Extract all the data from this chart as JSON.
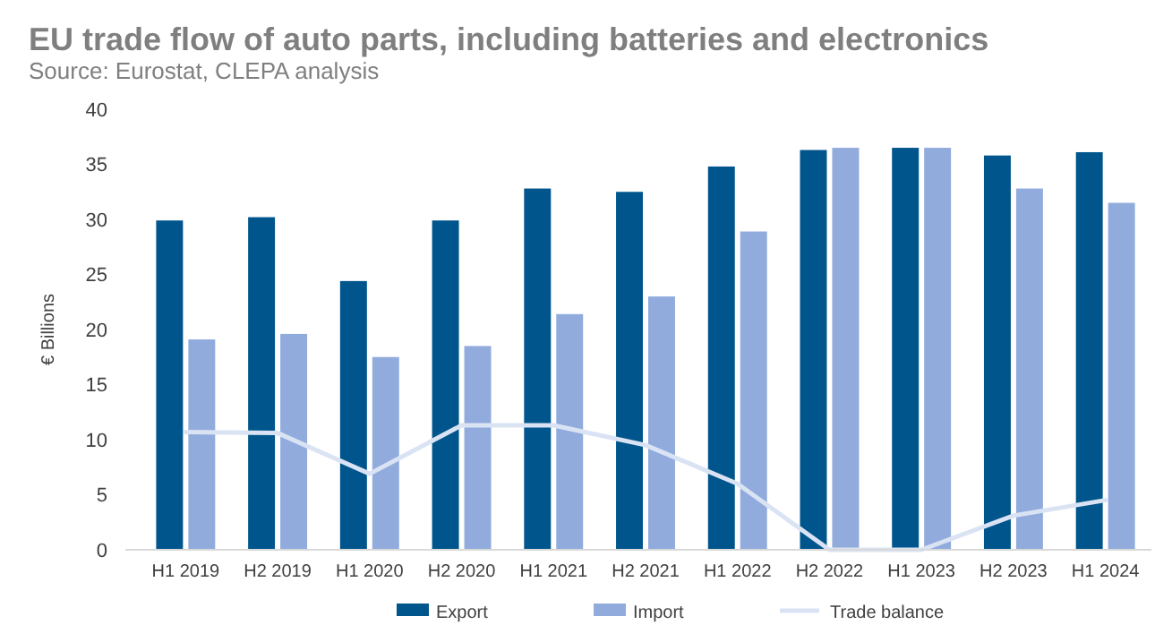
{
  "chart_data": {
    "type": "bar",
    "title": "EU trade flow of auto parts, including batteries and electronics",
    "subtitle": "Source: Eurostat, CLEPA analysis",
    "ylabel": "€ Billions",
    "categories": [
      "H1 2019",
      "H2 2019",
      "H1 2020",
      "H2 2020",
      "H1 2021",
      "H2 2021",
      "H1 2022",
      "H2 2022",
      "H1 2023",
      "H2 2023",
      "H1 2024"
    ],
    "series": [
      {
        "name": "Export",
        "color": "#00558c",
        "values": [
          29.9,
          30.2,
          24.4,
          29.9,
          32.8,
          32.5,
          34.8,
          36.3,
          36.5,
          35.8,
          36.1
        ]
      },
      {
        "name": "Import",
        "color": "#91abdd",
        "values": [
          19.1,
          19.6,
          17.5,
          18.5,
          21.4,
          23.0,
          28.9,
          36.5,
          36.5,
          32.8,
          31.5
        ]
      },
      {
        "name": "Trade balance",
        "type": "line",
        "color": "#dae3f3",
        "values": [
          10.7,
          10.6,
          6.9,
          11.3,
          11.3,
          9.5,
          6.0,
          0,
          0,
          3.1,
          4.5
        ]
      }
    ],
    "ylim": [
      0,
      40
    ],
    "yticks": [
      0,
      5,
      10,
      15,
      20,
      25,
      30,
      35,
      40
    ],
    "grid": false,
    "legend": "bottom"
  }
}
